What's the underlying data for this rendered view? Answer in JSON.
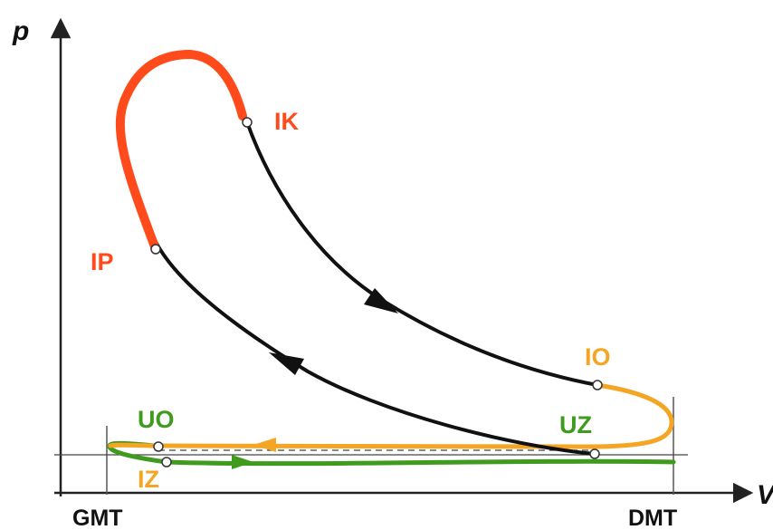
{
  "axes": {
    "y_label": "p",
    "x_label": "V",
    "x_left_marker": "GMT",
    "x_right_marker": "DMT"
  },
  "points": {
    "ik": "IK",
    "ip": "IP",
    "io": "IO",
    "uz": "UZ",
    "uo": "UO",
    "iz": "IZ"
  },
  "colors": {
    "compression_expansion": "#111111",
    "injection": "#ff4a1c",
    "exhaust": "#f5a524",
    "intake": "#3f9b1e",
    "axis": "#222222",
    "atmospheric_line": "#555555"
  }
}
